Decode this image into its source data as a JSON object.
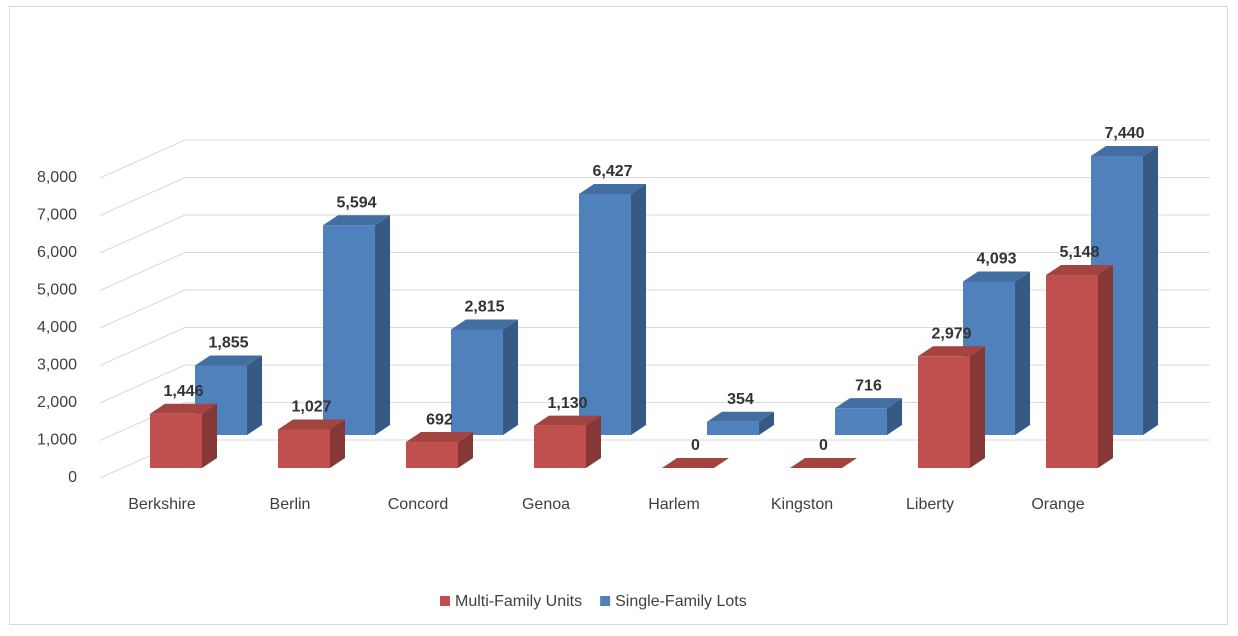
{
  "chart_data": {
    "type": "bar3d",
    "categories": [
      "Berkshire",
      "Berlin",
      "Concord",
      "Genoa",
      "Harlem",
      "Kingston",
      "Liberty",
      "Orange"
    ],
    "series": [
      {
        "name": "Multi-Family Units",
        "color": "#c0504d",
        "values": [
          1446,
          1027,
          692,
          1130,
          0,
          0,
          2979,
          5148
        ],
        "value_labels": [
          "1,446",
          "1,027",
          "692",
          "1,130",
          "0",
          "0",
          "2,979",
          "5,148"
        ]
      },
      {
        "name": "Single-Family Lots",
        "color": "#4f81bd",
        "values": [
          1855,
          5594,
          2815,
          6427,
          354,
          716,
          4093,
          7440
        ],
        "value_labels": [
          "1,855",
          "5,594",
          "2,815",
          "6,427",
          "354",
          "716",
          "4,093",
          "7,440"
        ]
      }
    ],
    "ylim": [
      0,
      8000
    ],
    "yticks": [
      0,
      {
        "value": 1000,
        "label": "1,000"
      },
      {
        "value": 2000,
        "label": "2,000"
      },
      {
        "value": 3000,
        "label": "3,000"
      },
      {
        "value": 4000,
        "label": "4,000"
      },
      {
        "value": 5000,
        "label": "5,000"
      },
      {
        "value": 6000,
        "label": "6,000"
      },
      {
        "value": 7000,
        "label": "7,000"
      },
      {
        "value": 8000,
        "label": "8,000"
      }
    ],
    "grid": true,
    "legend": "bottom"
  }
}
